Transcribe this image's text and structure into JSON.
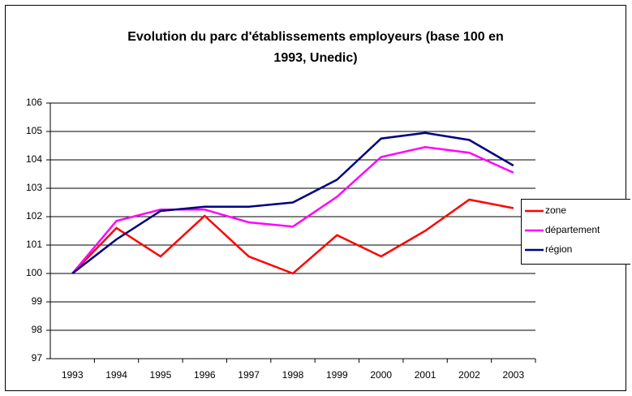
{
  "chart_data": {
    "type": "line",
    "title": [
      "Evolution du parc d'établissements employeurs (base 100 en",
      "1993, Unedic)"
    ],
    "categories": [
      "1993",
      "1994",
      "1995",
      "1996",
      "1997",
      "1998",
      "1999",
      "2000",
      "2001",
      "2002",
      "2003"
    ],
    "series": [
      {
        "name": "zone",
        "color": "#ff0000",
        "values": [
          100,
          101.6,
          100.6,
          102.03,
          100.6,
          100,
          101.35,
          100.6,
          101.5,
          102.6,
          102.3
        ]
      },
      {
        "name": "département",
        "color": "#ff00ff",
        "values": [
          100,
          101.85,
          102.25,
          102.25,
          101.8,
          101.65,
          102.7,
          104.1,
          104.45,
          104.25,
          103.55
        ]
      },
      {
        "name": "région",
        "color": "#000080",
        "values": [
          100,
          101.2,
          102.2,
          102.35,
          102.35,
          102.5,
          103.3,
          104.75,
          104.95,
          104.7,
          103.8
        ]
      }
    ],
    "ylim": [
      97,
      106
    ],
    "yticks": [
      97,
      98,
      99,
      100,
      101,
      102,
      103,
      104,
      105,
      106
    ],
    "grid": true,
    "legend": "right"
  }
}
